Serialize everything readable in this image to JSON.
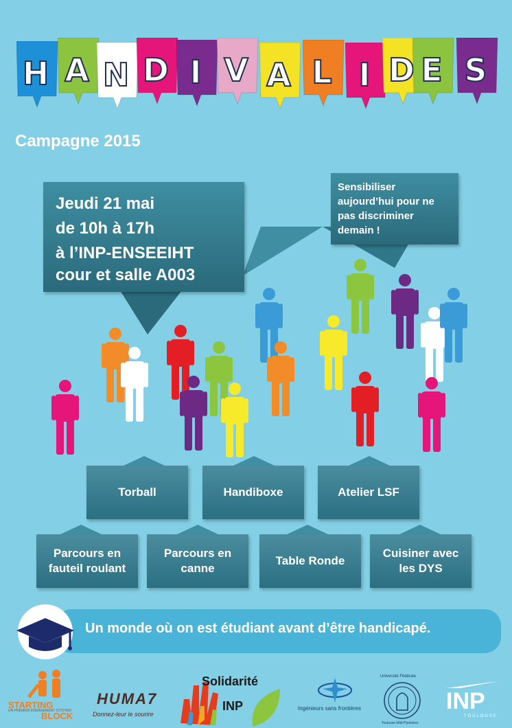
{
  "banner": {
    "letters": [
      "H",
      "A",
      "N",
      "D",
      "I",
      "V",
      "A",
      "L",
      "I",
      "D",
      "E",
      "S"
    ],
    "colors": [
      "#1e90d8",
      "#8cc43f",
      "#ffffff",
      "#e6157a",
      "#7a2c8e",
      "#e8a9c8",
      "#f4e324",
      "#f07f23",
      "#e6157a",
      "#f4e324",
      "#8cc43f",
      "#7a2c8e"
    ]
  },
  "campaign": "Campagne 2015",
  "event": {
    "line1": "Jeudi 21 mai",
    "line2": "de 10h à 17h",
    "line3": "à l’INP-ENSEEIHT",
    "line4": "cour et salle A003"
  },
  "slogan": {
    "line1": "Sensibiliser",
    "line2": "aujourd’hui pour ne",
    "line3": "pas discriminer",
    "line4": "demain !"
  },
  "activities_row1": [
    "Torball",
    "Handiboxe",
    "Atelier LSF"
  ],
  "activities_row2": [
    {
      "l1": "Parcours en",
      "l2": "fauteil roulant"
    },
    {
      "l1": "Parcours en",
      "l2": "canne"
    },
    {
      "l1": "Table Ronde",
      "l2": ""
    },
    {
      "l1": "Cuisiner avec",
      "l2": "les DYS"
    }
  ],
  "motto": "Un monde où on est étudiant avant d’être handicapé.",
  "logos": {
    "starting": {
      "l1": "STARTING",
      "l2": "BLOCK",
      "l3": "UN PREMIER ENGAGEMENT CITOYEN"
    },
    "hu7": {
      "name": "HUMA7",
      "tagline": "Donnez-leur le sourire"
    },
    "solidarite": {
      "l1": "Solidarité",
      "l2": "INP"
    },
    "isf": "Ingénieurs sans frontières",
    "univ": {
      "l1": "Université Fédérale",
      "l2": "Toulouse Midi-Pyrénées"
    },
    "inp": {
      "l1": "INP",
      "l2": "TOULOUSE"
    }
  },
  "people_colors": {
    "orange": "#f28c28",
    "white": "#ffffff",
    "red": "#e31e24",
    "purple": "#6c2a85",
    "green": "#8cc63f",
    "yellow": "#f7ea2b",
    "blue": "#3a9bd6",
    "pink": "#e6157a"
  }
}
